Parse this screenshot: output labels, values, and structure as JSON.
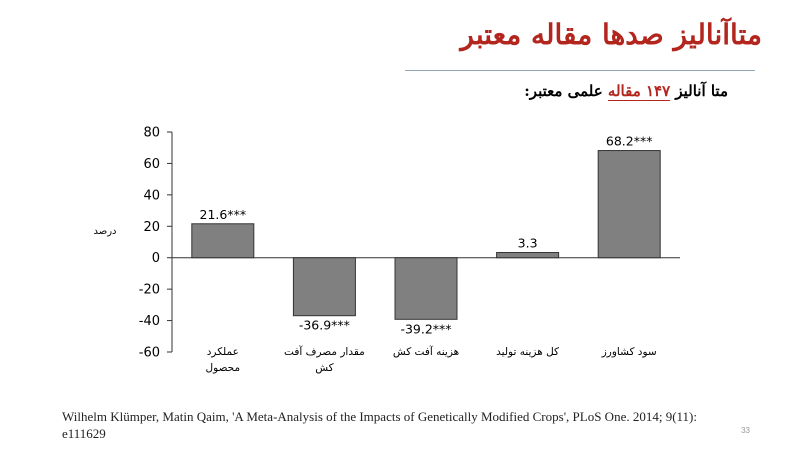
{
  "slide": {
    "title": "متاآنالیز صدها مقاله معتبر",
    "subtitle_before": "متا آنالیز ",
    "subtitle_highlight": "۱۴۷ مقاله",
    "subtitle_after": " علمی معتبر:",
    "citation": "Wilhelm Klümper, Matin Qaim, 'A Meta-Analysis of the Impacts of Genetically Modified Crops', PLoS One. 2014; 9(11): e111629",
    "page_number": "33",
    "colors": {
      "title": "#b3261e",
      "bar_fill": "#808080",
      "bar_stroke": "#333333"
    }
  },
  "chart_data": {
    "type": "bar",
    "categories": [
      [
        "عملکرد",
        "محصول"
      ],
      [
        "مقدار مصرف آفت",
        "کش"
      ],
      [
        "هزینه آفت کش"
      ],
      [
        "کل هزینه تولید"
      ],
      [
        "سود کشاورز"
      ]
    ],
    "values": [
      21.6,
      -36.9,
      -39.2,
      3.3,
      68.2
    ],
    "data_labels": [
      "21.6***",
      "-36.9***",
      "-39.2***",
      "3.3",
      "68.2***"
    ],
    "ylabel": "درصد",
    "ylim": [
      -60,
      80
    ],
    "yticks": [
      "80",
      "60",
      "40",
      "20",
      "0",
      "-20",
      "-40",
      "-60"
    ],
    "grid": false
  }
}
